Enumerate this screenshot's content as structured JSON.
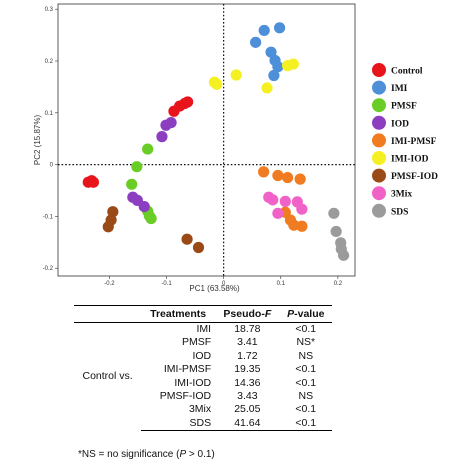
{
  "chart_data": {
    "type": "scatter",
    "xlabel": "PC1 (63.58%)",
    "ylabel": "PC2 (15.87%)",
    "xlim": [
      -0.29,
      0.23
    ],
    "ylim": [
      -0.215,
      0.31
    ],
    "xticks": [
      -0.2,
      -0.1,
      0,
      0.1,
      0.2
    ],
    "xtick_labels": [
      "-0.2",
      "-0.1",
      "0",
      "0.1",
      "0.2"
    ],
    "yticks": [
      -0.2,
      -0.1,
      0,
      0.1,
      0.2,
      0.3
    ],
    "ytick_labels": [
      "-0.2",
      "-0.1",
      "0",
      "0.1",
      "0.2",
      "0.3"
    ],
    "reference_lines": {
      "x": 0,
      "y": 0,
      "style": "dotted"
    },
    "grid": false,
    "legend_position": "right",
    "series": [
      {
        "name": "Control",
        "color": "#e8141b",
        "points": [
          [
            -0.237,
            -0.034
          ],
          [
            -0.231,
            -0.031
          ],
          [
            -0.228,
            -0.034
          ],
          [
            -0.087,
            0.103
          ],
          [
            -0.077,
            0.113
          ],
          [
            -0.068,
            0.118
          ],
          [
            -0.063,
            0.121
          ]
        ]
      },
      {
        "name": "IMI",
        "color": "#4d8fd9",
        "points": [
          [
            0.056,
            0.236
          ],
          [
            0.071,
            0.259
          ],
          [
            0.098,
            0.264
          ],
          [
            0.083,
            0.217
          ],
          [
            0.09,
            0.201
          ],
          [
            0.095,
            0.189
          ],
          [
            0.088,
            0.172
          ]
        ]
      },
      {
        "name": "PMSF",
        "color": "#6acd25",
        "points": [
          [
            -0.133,
            0.03
          ],
          [
            -0.152,
            -0.004
          ],
          [
            -0.161,
            -0.038
          ],
          [
            -0.133,
            -0.09
          ],
          [
            -0.13,
            -0.099
          ],
          [
            -0.127,
            -0.104
          ]
        ]
      },
      {
        "name": "IOD",
        "color": "#8c3ec1",
        "points": [
          [
            -0.108,
            0.054
          ],
          [
            -0.101,
            0.076
          ],
          [
            -0.092,
            0.081
          ],
          [
            -0.159,
            -0.063
          ],
          [
            -0.151,
            -0.069
          ],
          [
            -0.139,
            -0.081
          ]
        ]
      },
      {
        "name": "IMI-PMSF",
        "color": "#f07b20",
        "points": [
          [
            0.07,
            -0.014
          ],
          [
            0.095,
            -0.021
          ],
          [
            0.112,
            -0.025
          ],
          [
            0.134,
            -0.028
          ],
          [
            0.108,
            -0.092
          ],
          [
            0.117,
            -0.107
          ],
          [
            0.123,
            -0.117
          ],
          [
            0.137,
            -0.119
          ]
        ]
      },
      {
        "name": "IMI-IOD",
        "color": "#f5f021",
        "points": [
          [
            -0.016,
            0.159
          ],
          [
            -0.012,
            0.155
          ],
          [
            0.022,
            0.173
          ],
          [
            0.076,
            0.148
          ],
          [
            0.112,
            0.191
          ],
          [
            0.122,
            0.194
          ]
        ]
      },
      {
        "name": "PMSF-IOD",
        "color": "#9a4a17",
        "points": [
          [
            -0.194,
            -0.091
          ],
          [
            -0.197,
            -0.107
          ],
          [
            -0.202,
            -0.12
          ],
          [
            -0.064,
            -0.144
          ],
          [
            -0.044,
            -0.16
          ]
        ]
      },
      {
        "name": "3Mix",
        "color": "#f062c8",
        "points": [
          [
            0.079,
            -0.063
          ],
          [
            0.086,
            -0.068
          ],
          [
            0.108,
            -0.071
          ],
          [
            0.129,
            -0.072
          ],
          [
            0.137,
            -0.086
          ],
          [
            0.095,
            -0.094
          ]
        ]
      },
      {
        "name": "SDS",
        "color": "#9b9b9b",
        "points": [
          [
            0.193,
            -0.094
          ],
          [
            0.197,
            -0.129
          ],
          [
            0.205,
            -0.151
          ],
          [
            0.206,
            -0.163
          ],
          [
            0.21,
            -0.175
          ]
        ]
      }
    ]
  },
  "table": {
    "headers": [
      "Treatments",
      "Pseudo-",
      "F",
      "P",
      "-value"
    ],
    "group_label": "Control vs.",
    "rows": [
      [
        "IMI",
        "18.78",
        "<0.1"
      ],
      [
        "PMSF",
        "3.41",
        "NS*"
      ],
      [
        "IOD",
        "1.72",
        "NS"
      ],
      [
        "IMI-PMSF",
        "19.35",
        "<0.1"
      ],
      [
        "IMI-IOD",
        "14.36",
        "<0.1"
      ],
      [
        "PMSF-IOD",
        "3.43",
        "NS"
      ],
      [
        "3Mix",
        "25.05",
        "<0.1"
      ],
      [
        "SDS",
        "41.64",
        "<0.1"
      ]
    ],
    "footnote": {
      "before": "*NS = no significance (",
      "italic": "P",
      "after": " > 0.1)"
    }
  }
}
